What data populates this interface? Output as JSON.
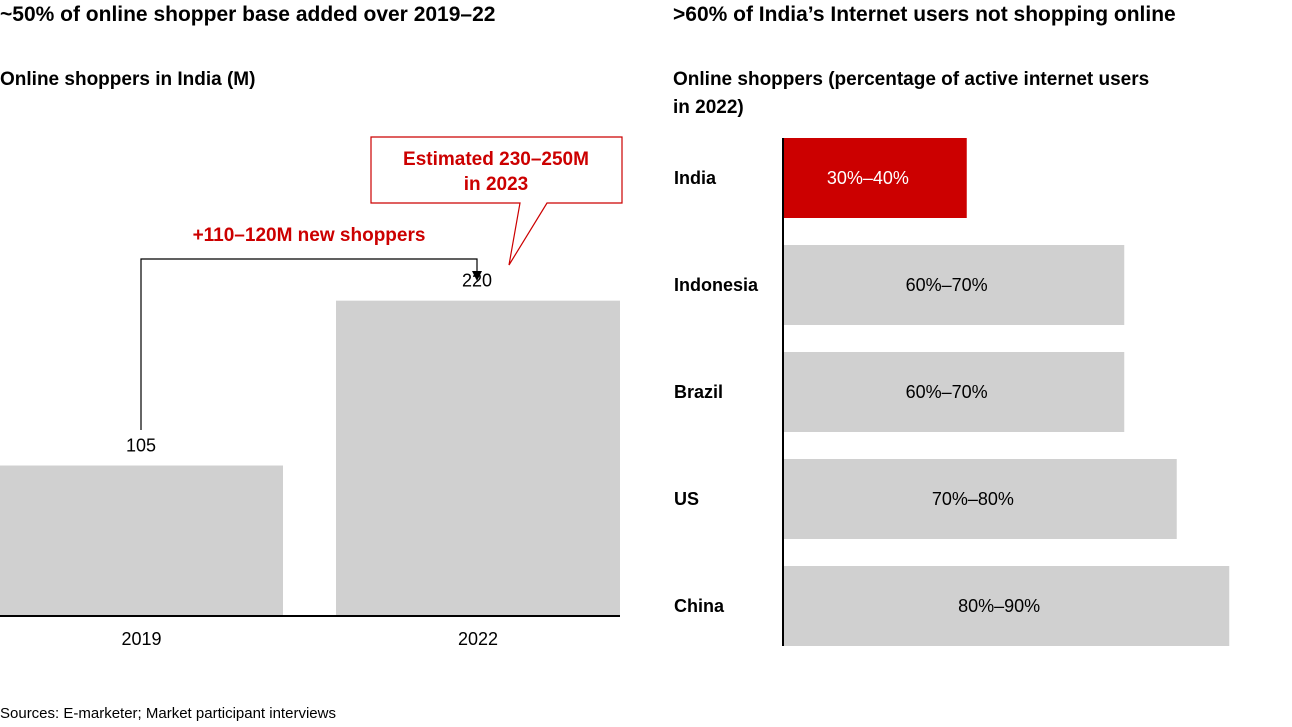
{
  "colors": {
    "bar": "#d0d0d0",
    "highlight": "#cc0000",
    "axis": "#000000",
    "text": "#000000",
    "white": "#ffffff"
  },
  "left": {
    "title": "~50% of online shopper base added over 2019–22",
    "subtitle": "Online shoppers in India (M)",
    "callout_line1": "Estimated 230–250M",
    "callout_line2": "in 2023",
    "growth_label": "+110–120M new shoppers"
  },
  "right": {
    "title": ">60% of India’s Internet users not shopping online",
    "subtitle_line1": "Online shoppers (percentage of active internet users",
    "subtitle_line2": "in 2022)"
  },
  "source": "Sources: E-marketer; Market participant interviews",
  "chart_data": [
    {
      "type": "bar",
      "title": "Online shoppers in India (M)",
      "categories": [
        "2019",
        "2022"
      ],
      "values": [
        105,
        220
      ],
      "labels": [
        "105",
        "220"
      ],
      "ylim": [
        0,
        300
      ]
    },
    {
      "type": "bar",
      "orientation": "horizontal",
      "title": "Online shoppers (percentage of active internet users in 2022)",
      "categories": [
        "India",
        "Indonesia",
        "Brazil",
        "US",
        "China"
      ],
      "ranges": [
        [
          30,
          40
        ],
        [
          60,
          70
        ],
        [
          60,
          70
        ],
        [
          70,
          80
        ],
        [
          80,
          90
        ]
      ],
      "labels": [
        "30%–40%",
        "60%–70%",
        "60%–70%",
        "70%–80%",
        "80%–90%"
      ],
      "highlight": [
        "India"
      ],
      "xlim": [
        0,
        100
      ]
    }
  ]
}
